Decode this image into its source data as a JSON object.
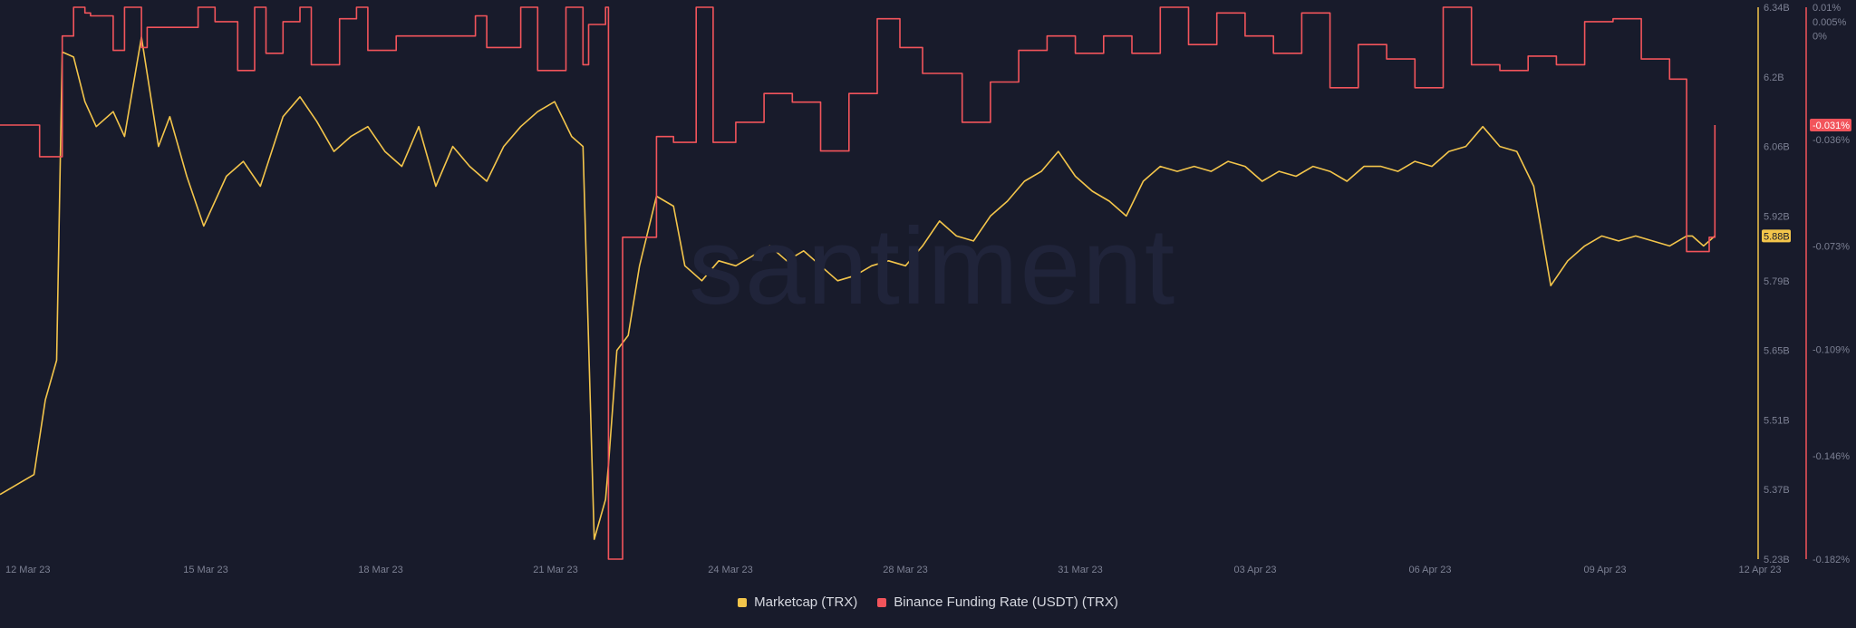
{
  "watermark": "santiment",
  "chart_data": {
    "type": "line",
    "x_axis": {
      "ticks": [
        "12 Mar 23",
        "15 Mar 23",
        "18 Mar 23",
        "21 Mar 23",
        "24 Mar 23",
        "28 Mar 23",
        "31 Mar 23",
        "03 Apr 23",
        "06 Apr 23",
        "09 Apr 23",
        "12 Apr 23"
      ],
      "range": [
        "2023-03-12",
        "2023-04-12"
      ]
    },
    "left_axis": {
      "ticks": [
        "6.34B",
        "6.2B",
        "6.06B",
        "5.92B",
        "5.79B",
        "5.65B",
        "5.51B",
        "5.37B",
        "5.23B"
      ],
      "range": [
        5.23,
        6.34
      ],
      "current_value": "5.88B"
    },
    "right_axis": {
      "ticks": [
        "0.01%",
        "0.005%",
        "0%",
        "-0.036%",
        "-0.073%",
        "-0.109%",
        "-0.146%",
        "-0.182%"
      ],
      "range": [
        -0.182,
        0.01
      ],
      "current_value": "-0.031%"
    },
    "grid": false,
    "legend_position": "bottom-center",
    "series": [
      {
        "name": "Marketcap (TRX)",
        "color": "#f3c54b",
        "axis": "left",
        "unit": "B USD",
        "x": [
          0.0,
          0.3,
          0.6,
          0.8,
          1.0,
          1.1,
          1.3,
          1.5,
          1.7,
          2.0,
          2.2,
          2.5,
          2.8,
          3.0,
          3.3,
          3.6,
          4.0,
          4.3,
          4.6,
          5.0,
          5.3,
          5.6,
          5.9,
          6.2,
          6.5,
          6.8,
          7.1,
          7.4,
          7.7,
          8.0,
          8.3,
          8.6,
          8.9,
          9.2,
          9.5,
          9.8,
          10.1,
          10.3,
          10.5,
          10.7,
          10.75,
          10.9,
          11.1,
          11.3,
          11.6,
          11.9,
          12.1,
          12.4,
          12.7,
          13.0,
          13.3,
          13.6,
          13.9,
          14.2,
          14.5,
          14.8,
          15.1,
          15.4,
          15.7,
          16.0,
          16.3,
          16.6,
          16.9,
          17.2,
          17.5,
          17.8,
          18.1,
          18.4,
          18.7,
          19.0,
          19.3,
          19.6,
          19.9,
          20.2,
          20.5,
          20.8,
          21.1,
          21.4,
          21.7,
          22.0,
          22.3,
          22.6,
          22.9,
          23.2,
          23.5,
          23.8,
          24.1,
          24.4,
          24.7,
          25.0,
          25.3,
          25.6,
          25.9,
          26.2,
          26.5,
          26.8,
          27.1,
          27.4,
          27.7,
          28.0,
          28.3,
          28.6,
          28.9,
          29.2,
          29.5,
          29.8,
          29.9,
          30.0,
          30.1,
          30.3
        ],
        "values": [
          5.36,
          5.38,
          5.4,
          5.55,
          5.63,
          6.25,
          6.24,
          6.15,
          6.1,
          6.13,
          6.08,
          6.28,
          6.06,
          6.12,
          6.0,
          5.9,
          6.0,
          6.03,
          5.98,
          6.12,
          6.16,
          6.11,
          6.05,
          6.08,
          6.1,
          6.05,
          6.02,
          6.1,
          5.98,
          6.06,
          6.02,
          5.99,
          6.06,
          6.1,
          6.13,
          6.15,
          6.08,
          6.06,
          5.27,
          5.35,
          5.42,
          5.65,
          5.68,
          5.82,
          5.96,
          5.94,
          5.82,
          5.79,
          5.83,
          5.82,
          5.84,
          5.86,
          5.83,
          5.85,
          5.82,
          5.79,
          5.8,
          5.82,
          5.83,
          5.82,
          5.86,
          5.91,
          5.88,
          5.87,
          5.92,
          5.95,
          5.99,
          6.01,
          6.05,
          6.0,
          5.97,
          5.95,
          5.92,
          5.99,
          6.02,
          6.01,
          6.02,
          6.01,
          6.03,
          6.02,
          5.99,
          6.01,
          6.0,
          6.02,
          6.01,
          5.99,
          6.02,
          6.02,
          6.01,
          6.03,
          6.02,
          6.05,
          6.06,
          6.1,
          6.06,
          6.05,
          5.98,
          5.78,
          5.83,
          5.86,
          5.88,
          5.87,
          5.88,
          5.87,
          5.86,
          5.88,
          5.88,
          5.87,
          5.86,
          5.88
        ]
      },
      {
        "name": "Binance Funding Rate (USDT) (TRX)",
        "color": "#f2545b",
        "axis": "right",
        "unit": "%",
        "x": [
          0.0,
          0.6,
          0.7,
          1.0,
          1.1,
          1.3,
          1.5,
          1.6,
          2.0,
          2.2,
          2.5,
          2.6,
          3.5,
          3.8,
          4.2,
          4.5,
          4.7,
          5.0,
          5.3,
          5.5,
          6.0,
          6.3,
          6.5,
          7.0,
          8.4,
          8.6,
          9.2,
          9.5,
          10.0,
          10.3,
          10.4,
          10.7,
          10.75,
          10.8,
          11.0,
          11.6,
          11.9,
          12.3,
          12.6,
          13.0,
          13.5,
          14.0,
          14.5,
          15.0,
          15.5,
          15.9,
          16.3,
          17.0,
          17.5,
          18.0,
          18.5,
          19.0,
          19.5,
          20.0,
          20.5,
          21.0,
          21.5,
          22.0,
          22.5,
          23.0,
          23.5,
          24.0,
          24.5,
          25.0,
          25.5,
          26.0,
          26.5,
          27.0,
          27.5,
          28.0,
          28.5,
          29.0,
          29.5,
          29.8,
          30.0,
          30.2,
          30.3
        ],
        "values": [
          -0.031,
          -0.031,
          -0.042,
          -0.042,
          0.0,
          0.01,
          0.008,
          0.007,
          -0.005,
          0.01,
          -0.004,
          0.003,
          0.01,
          0.005,
          -0.012,
          0.01,
          -0.006,
          0.005,
          0.01,
          -0.01,
          0.006,
          0.01,
          -0.005,
          0.0,
          0.007,
          -0.004,
          0.01,
          -0.012,
          0.01,
          -0.01,
          0.004,
          0.01,
          -0.182,
          -0.182,
          -0.07,
          -0.035,
          -0.037,
          0.01,
          -0.037,
          -0.03,
          -0.02,
          -0.023,
          -0.04,
          -0.02,
          0.006,
          -0.004,
          -0.013,
          -0.03,
          -0.016,
          -0.005,
          0.0,
          -0.006,
          0.0,
          -0.006,
          0.01,
          -0.003,
          0.008,
          0.0,
          -0.006,
          0.008,
          -0.018,
          -0.003,
          -0.008,
          -0.018,
          0.01,
          -0.01,
          -0.012,
          -0.007,
          -0.01,
          0.005,
          0.006,
          -0.008,
          -0.015,
          -0.075,
          -0.075,
          -0.07,
          -0.031
        ]
      }
    ]
  }
}
